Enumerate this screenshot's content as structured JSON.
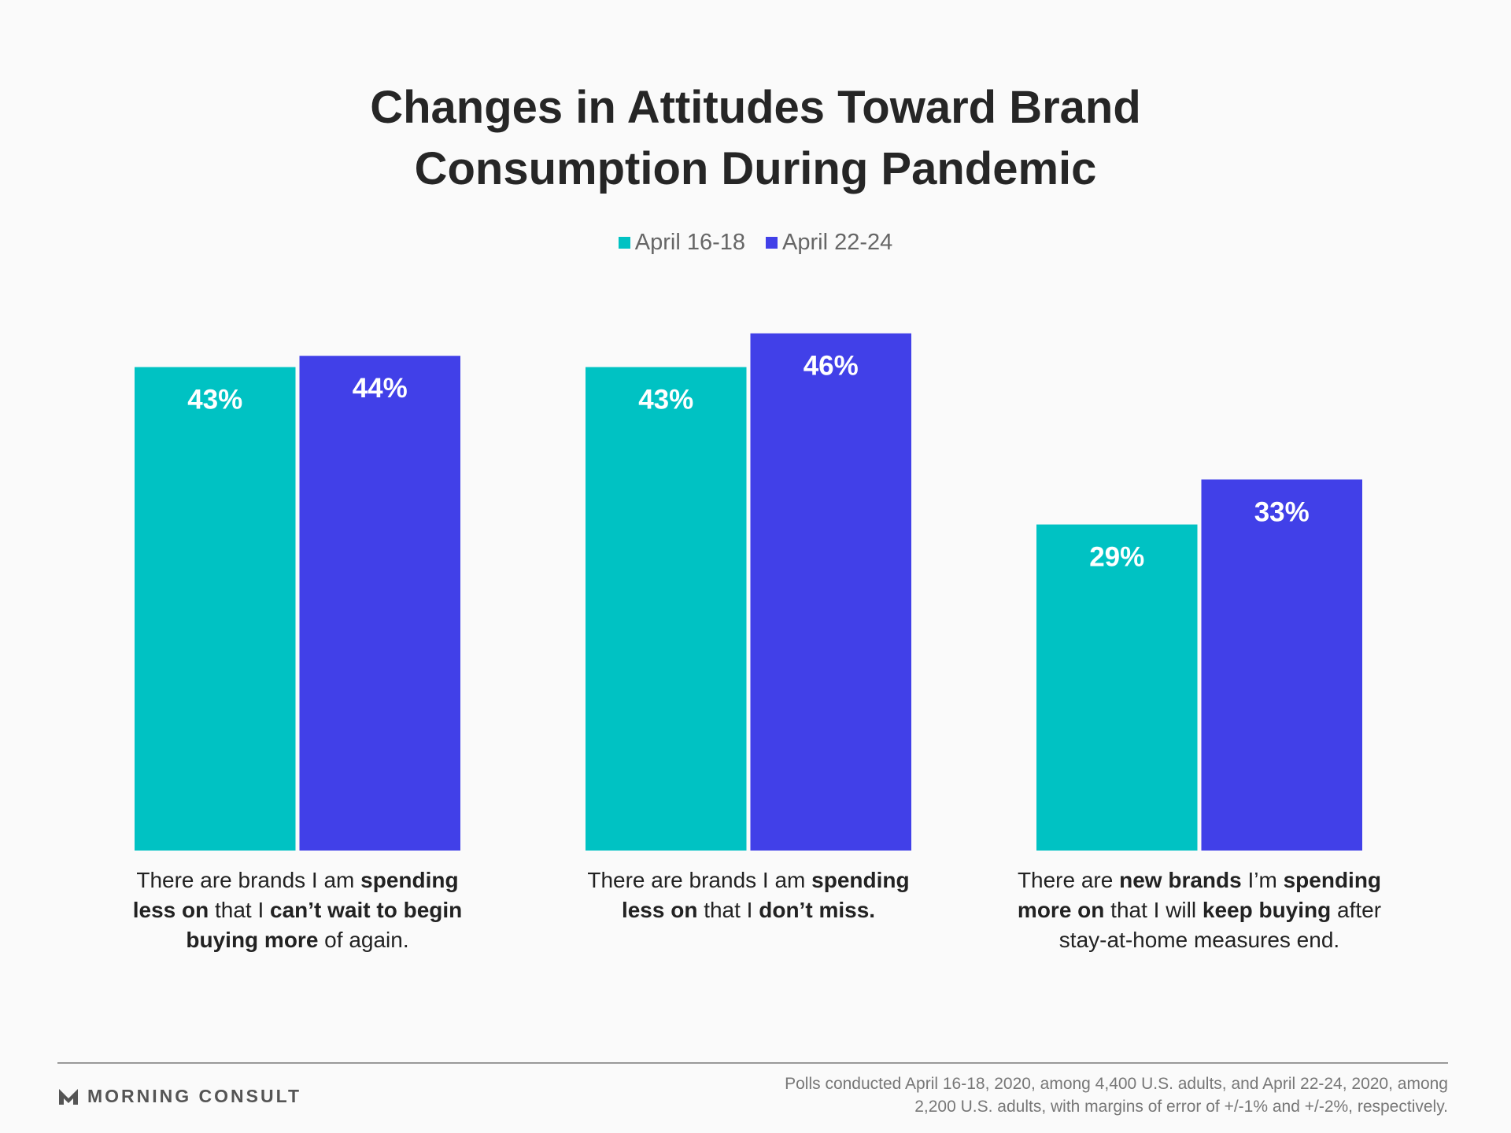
{
  "chart_data": {
    "type": "bar",
    "title": "Changes in Attitudes Toward Brand Consumption During Pandemic",
    "categories": [
      [
        {
          "text": "There are brands I am ",
          "bold": false
        },
        {
          "text": "spending less on",
          "bold": true
        },
        {
          "text": " that I ",
          "bold": false
        },
        {
          "text": "can’t wait to begin buying more",
          "bold": true
        },
        {
          "text": " of again.",
          "bold": false
        }
      ],
      [
        {
          "text": "There are brands I am ",
          "bold": false
        },
        {
          "text": "spending less on",
          "bold": true
        },
        {
          "text": " that I ",
          "bold": false
        },
        {
          "text": "don’t miss.",
          "bold": true
        }
      ],
      [
        {
          "text": "There are ",
          "bold": false
        },
        {
          "text": "new brands",
          "bold": true
        },
        {
          "text": " I’m ",
          "bold": false
        },
        {
          "text": "spending more on",
          "bold": true
        },
        {
          "text": " that I will ",
          "bold": false
        },
        {
          "text": "keep buying",
          "bold": true
        },
        {
          "text": " after stay-at-home measures end.",
          "bold": false
        }
      ]
    ],
    "series": [
      {
        "name": "April 16-18",
        "color": "#00c2c3",
        "values": [
          43,
          43,
          29
        ],
        "value_labels": [
          "43%",
          "43%",
          "29%"
        ]
      },
      {
        "name": "April 22-24",
        "color": "#4140e8",
        "values": [
          44,
          46,
          33
        ],
        "value_labels": [
          "44%",
          "46%",
          "33%"
        ]
      }
    ],
    "ylim": [
      0,
      50
    ],
    "legend": "top",
    "logo": "MORNING CONSULT",
    "note": "Polls conducted April 16-18, 2020, among 4,400 U.S. adults, and April 22-24, 2020, among 2,200 U.S. adults, with margins of error of +/-1% and +/-2%, respectively."
  }
}
